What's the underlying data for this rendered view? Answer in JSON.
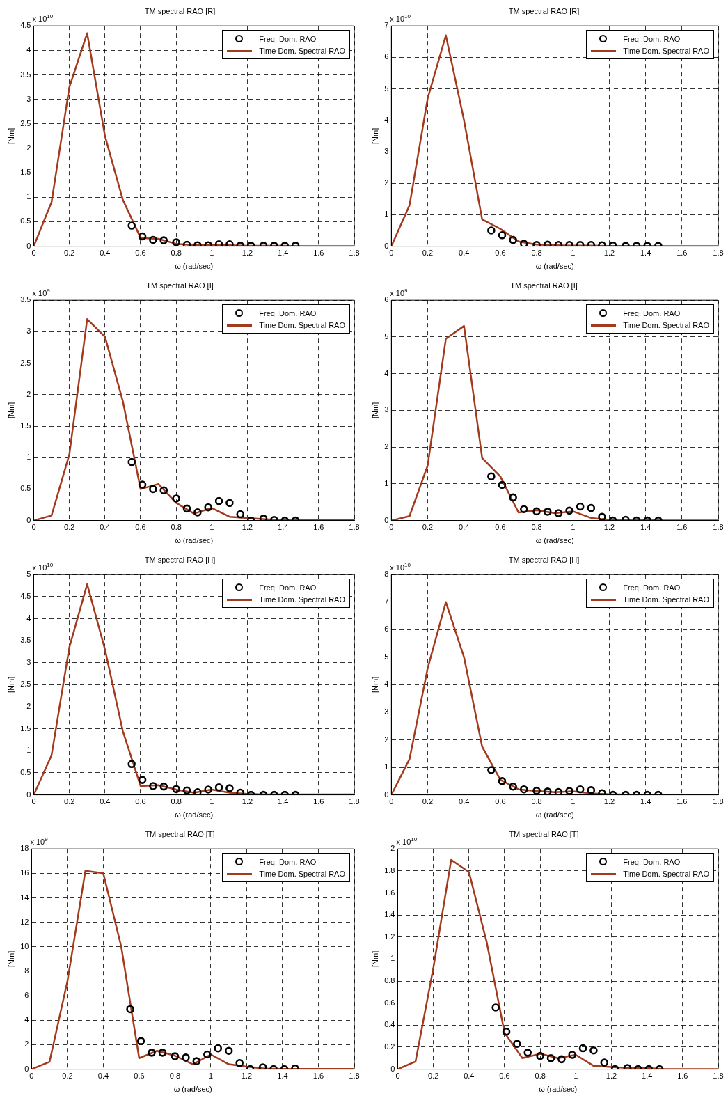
{
  "chart_data": [
    {
      "type": "line",
      "title": "TM spectral RAO [R]",
      "xlabel": "ω (rad/sec)",
      "ylabel": "[Nm]",
      "annotations": [
        "x 10$^{10}$"
      ],
      "xlim": [
        0,
        1.8
      ],
      "xticks": [
        0,
        0.2,
        0.4,
        0.6,
        0.8,
        1,
        1.2,
        1.4,
        1.6,
        1.8
      ],
      "ylim": [
        0,
        4.5
      ],
      "yticks": [
        0,
        0.5,
        1,
        1.5,
        2,
        2.5,
        3,
        3.5,
        4,
        4.5
      ],
      "grid": true,
      "legend": "top right",
      "series": [
        {
          "name": "Freq. Dom. RAO",
          "type": "scatter",
          "marker": "circle",
          "color": "#000000",
          "x": [
            0.55,
            0.61,
            0.67,
            0.73,
            0.8,
            0.86,
            0.92,
            0.98,
            1.04,
            1.1,
            1.16,
            1.22,
            1.29,
            1.35,
            1.41,
            1.47
          ],
          "values": [
            0.42,
            0.2,
            0.13,
            0.12,
            0.08,
            0.03,
            0.02,
            0.02,
            0.04,
            0.04,
            0.01,
            0.01,
            0.01,
            0.01,
            0.01,
            0.01
          ]
        },
        {
          "name": "Time Dom. Spectral RAO",
          "type": "line",
          "marker": "none",
          "color": "#a33a1d",
          "x": [
            0,
            0.1,
            0.2,
            0.3,
            0.4,
            0.5,
            0.6,
            0.7,
            0.8,
            0.9,
            1,
            1.1,
            1.2,
            1.3,
            1.4,
            1.5,
            1.6,
            1.7,
            1.8
          ],
          "values": [
            0,
            0.9,
            3.25,
            4.35,
            2.25,
            0.95,
            0.17,
            0.15,
            0.05,
            0.02,
            0.02,
            0.02,
            0.01,
            0.01,
            0.01,
            0,
            0,
            0,
            0
          ]
        }
      ]
    },
    {
      "type": "line",
      "title": "TM spectral RAO [R]",
      "xlabel": "ω (rad/sec)",
      "ylabel": "[Nm]",
      "annotations": [
        "x 10$^{10}$"
      ],
      "xlim": [
        0,
        1.8
      ],
      "xticks": [
        0,
        0.2,
        0.4,
        0.6,
        0.8,
        1,
        1.2,
        1.4,
        1.6,
        1.8
      ],
      "ylim": [
        0,
        7
      ],
      "yticks": [
        0,
        1,
        2,
        3,
        4,
        5,
        6,
        7
      ],
      "grid": true,
      "legend": "top right",
      "series": [
        {
          "name": "Freq. Dom. RAO",
          "type": "scatter",
          "marker": "circle",
          "color": "#000000",
          "x": [
            0.55,
            0.61,
            0.67,
            0.73,
            0.8,
            0.86,
            0.92,
            0.98,
            1.04,
            1.1,
            1.16,
            1.22,
            1.29,
            1.35,
            1.41,
            1.47
          ],
          "values": [
            0.5,
            0.35,
            0.2,
            0.08,
            0.04,
            0.05,
            0.04,
            0.04,
            0.04,
            0.04,
            0.03,
            0.02,
            0.01,
            0.01,
            0.01,
            0.01
          ]
        },
        {
          "name": "Time Dom. Spectral RAO",
          "type": "line",
          "marker": "none",
          "color": "#a33a1d",
          "x": [
            0,
            0.1,
            0.2,
            0.3,
            0.4,
            0.5,
            0.6,
            0.7,
            0.8,
            0.9,
            1,
            1.1,
            1.2,
            1.3,
            1.4,
            1.5,
            1.6,
            1.7,
            1.8
          ],
          "values": [
            0,
            1.3,
            4.7,
            6.7,
            4.0,
            0.85,
            0.55,
            0.15,
            0.05,
            0.03,
            0.02,
            0.02,
            0.01,
            0.01,
            0.01,
            0,
            0,
            0,
            0
          ]
        }
      ]
    },
    {
      "type": "line",
      "title": "TM spectral RAO [I]",
      "xlabel": "ω (rad/sec)",
      "ylabel": "[Nm]",
      "annotations": [
        "x 10$^{9}$"
      ],
      "xlim": [
        0,
        1.8
      ],
      "xticks": [
        0,
        0.2,
        0.4,
        0.6,
        0.8,
        1,
        1.2,
        1.4,
        1.6,
        1.8
      ],
      "ylim": [
        0,
        3.5
      ],
      "yticks": [
        0,
        0.5,
        1,
        1.5,
        2,
        2.5,
        3,
        3.5
      ],
      "grid": true,
      "legend": "top right",
      "series": [
        {
          "name": "Freq. Dom. RAO",
          "type": "scatter",
          "marker": "circle",
          "color": "#000000",
          "x": [
            0.55,
            0.61,
            0.67,
            0.73,
            0.8,
            0.86,
            0.92,
            0.98,
            1.04,
            1.1,
            1.16,
            1.22,
            1.29,
            1.35,
            1.41,
            1.47
          ],
          "values": [
            0.93,
            0.57,
            0.5,
            0.48,
            0.35,
            0.19,
            0.13,
            0.21,
            0.31,
            0.28,
            0.1,
            0,
            0.03,
            0.01,
            0,
            0
          ]
        },
        {
          "name": "Time Dom. Spectral RAO",
          "type": "line",
          "marker": "none",
          "color": "#a33a1d",
          "x": [
            0,
            0.1,
            0.2,
            0.3,
            0.4,
            0.5,
            0.6,
            0.7,
            0.8,
            0.9,
            1,
            1.1,
            1.2,
            1.3,
            1.4,
            1.5,
            1.6,
            1.7,
            1.8
          ],
          "values": [
            0,
            0.08,
            1.05,
            3.2,
            2.92,
            1.9,
            0.5,
            0.58,
            0.28,
            0.11,
            0.2,
            0.06,
            0.04,
            0.02,
            0.01,
            0.01,
            0.01,
            0.01,
            0.01
          ]
        }
      ]
    },
    {
      "type": "line",
      "title": "TM spectral RAO [I]",
      "xlabel": "ω (rad/sec)",
      "ylabel": "[Nm]",
      "annotations": [
        "x 10$^{9}$"
      ],
      "xlim": [
        0,
        1.8
      ],
      "xticks": [
        0,
        0.2,
        0.4,
        0.6,
        0.8,
        1,
        1.2,
        1.4,
        1.6,
        1.8
      ],
      "ylim": [
        0,
        6
      ],
      "yticks": [
        0,
        1,
        2,
        3,
        4,
        5,
        6
      ],
      "grid": true,
      "legend": "top right",
      "series": [
        {
          "name": "Freq. Dom. RAO",
          "type": "scatter",
          "marker": "circle",
          "color": "#000000",
          "x": [
            0.55,
            0.61,
            0.67,
            0.73,
            0.8,
            0.86,
            0.92,
            0.98,
            1.04,
            1.1,
            1.16,
            1.22,
            1.29,
            1.35,
            1.41,
            1.47
          ],
          "values": [
            1.2,
            0.97,
            0.63,
            0.31,
            0.25,
            0.24,
            0.2,
            0.27,
            0.38,
            0.34,
            0.1,
            0,
            0.02,
            0,
            0,
            0
          ]
        },
        {
          "name": "Time Dom. Spectral RAO",
          "type": "line",
          "marker": "none",
          "color": "#a33a1d",
          "x": [
            0,
            0.1,
            0.2,
            0.3,
            0.4,
            0.5,
            0.6,
            0.7,
            0.8,
            0.9,
            1,
            1.1,
            1.2,
            1.3,
            1.4,
            1.5,
            1.6,
            1.7,
            1.8
          ],
          "values": [
            0,
            0.12,
            1.5,
            4.95,
            5.3,
            1.7,
            1.2,
            0.22,
            0.28,
            0.2,
            0.25,
            0.07,
            0.02,
            0.01,
            0.01,
            0,
            0,
            0,
            0
          ]
        }
      ]
    },
    {
      "type": "line",
      "title": "TM spectral RAO [H]",
      "xlabel": "ω (rad/sec)",
      "ylabel": "[Nm]",
      "annotations": [
        "x 10$^{10}$"
      ],
      "xlim": [
        0,
        1.8
      ],
      "xticks": [
        0,
        0.2,
        0.4,
        0.6,
        0.8,
        1,
        1.2,
        1.4,
        1.6,
        1.8
      ],
      "ylim": [
        0,
        5
      ],
      "yticks": [
        0,
        0.5,
        1,
        1.5,
        2,
        2.5,
        3,
        3.5,
        4,
        4.5,
        5
      ],
      "grid": true,
      "legend": "top right",
      "series": [
        {
          "name": "Freq. Dom. RAO",
          "type": "scatter",
          "marker": "circle",
          "color": "#000000",
          "x": [
            0.55,
            0.61,
            0.67,
            0.73,
            0.8,
            0.86,
            0.92,
            0.98,
            1.04,
            1.1,
            1.16,
            1.22,
            1.29,
            1.35,
            1.41,
            1.47
          ],
          "values": [
            0.7,
            0.34,
            0.2,
            0.19,
            0.13,
            0.1,
            0.06,
            0.12,
            0.17,
            0.15,
            0.05,
            0,
            0,
            0,
            0,
            0
          ]
        },
        {
          "name": "Time Dom. Spectral RAO",
          "type": "line",
          "marker": "none",
          "color": "#a33a1d",
          "x": [
            0,
            0.1,
            0.2,
            0.3,
            0.4,
            0.5,
            0.6,
            0.7,
            0.8,
            0.9,
            1,
            1.1,
            1.2,
            1.3,
            1.4,
            1.5,
            1.6,
            1.7,
            1.8
          ],
          "values": [
            0,
            0.9,
            3.35,
            4.78,
            3.3,
            1.45,
            0.2,
            0.22,
            0.12,
            0.05,
            0.12,
            0.05,
            0.02,
            0.01,
            0.01,
            0.01,
            0.01,
            0.01,
            0.01
          ]
        }
      ]
    },
    {
      "type": "line",
      "title": "TM spectral RAO [H]",
      "xlabel": "ω (rad/sec)",
      "ylabel": "[Nm]",
      "annotations": [
        "x 10$^{10}$"
      ],
      "xlim": [
        0,
        1.8
      ],
      "xticks": [
        0,
        0.2,
        0.4,
        0.6,
        0.8,
        1,
        1.2,
        1.4,
        1.6,
        1.8
      ],
      "ylim": [
        0,
        8
      ],
      "yticks": [
        0,
        1,
        2,
        3,
        4,
        5,
        6,
        7,
        8
      ],
      "grid": true,
      "legend": "top right",
      "series": [
        {
          "name": "Freq. Dom. RAO",
          "type": "scatter",
          "marker": "circle",
          "color": "#000000",
          "x": [
            0.55,
            0.61,
            0.67,
            0.73,
            0.8,
            0.86,
            0.92,
            0.98,
            1.04,
            1.1,
            1.16,
            1.22,
            1.29,
            1.35,
            1.41,
            1.47
          ],
          "values": [
            0.9,
            0.5,
            0.3,
            0.2,
            0.15,
            0.12,
            0.1,
            0.14,
            0.2,
            0.17,
            0.06,
            0,
            0,
            0,
            0,
            0
          ]
        },
        {
          "name": "Time Dom. Spectral RAO",
          "type": "line",
          "marker": "none",
          "color": "#a33a1d",
          "x": [
            0,
            0.1,
            0.2,
            0.3,
            0.4,
            0.5,
            0.6,
            0.7,
            0.8,
            0.9,
            1,
            1.1,
            1.2,
            1.3,
            1.4,
            1.5,
            1.6,
            1.7,
            1.8
          ],
          "values": [
            0,
            1.3,
            4.6,
            7.0,
            5.0,
            1.75,
            0.55,
            0.2,
            0.14,
            0.1,
            0.13,
            0.05,
            0.02,
            0.01,
            0.01,
            0,
            0,
            0,
            0
          ]
        }
      ]
    },
    {
      "type": "line",
      "title": "TM spectral RAO [T]",
      "xlabel": "ω (rad/sec)",
      "ylabel": "[Nm]",
      "annotations": [
        "x 10$^{9}$"
      ],
      "xlim": [
        0,
        1.8
      ],
      "xticks": [
        0,
        0.2,
        0.4,
        0.6,
        0.8,
        1,
        1.2,
        1.4,
        1.6,
        1.8
      ],
      "ylim": [
        0,
        18
      ],
      "yticks": [
        0,
        2,
        4,
        6,
        8,
        10,
        12,
        14,
        16,
        18
      ],
      "grid": true,
      "legend": "top right",
      "series": [
        {
          "name": "Freq. Dom. RAO",
          "type": "scatter",
          "marker": "circle",
          "color": "#000000",
          "x": [
            0.55,
            0.61,
            0.67,
            0.73,
            0.8,
            0.86,
            0.92,
            0.98,
            1.04,
            1.1,
            1.16,
            1.22,
            1.29,
            1.35,
            1.41,
            1.47
          ],
          "values": [
            4.9,
            2.3,
            1.35,
            1.35,
            1.05,
            0.95,
            0.65,
            1.2,
            1.7,
            1.5,
            0.5,
            0,
            0.15,
            0,
            0,
            0.05
          ]
        },
        {
          "name": "Time Dom. Spectral RAO",
          "type": "line",
          "marker": "none",
          "color": "#a33a1d",
          "x": [
            0,
            0.1,
            0.2,
            0.3,
            0.4,
            0.5,
            0.6,
            0.7,
            0.8,
            0.9,
            1,
            1.1,
            1.2,
            1.3,
            1.4,
            1.5,
            1.6,
            1.7,
            1.8
          ],
          "values": [
            0,
            0.6,
            7.2,
            16.2,
            16.0,
            10.0,
            0.9,
            1.5,
            1.1,
            0.4,
            1.2,
            0.4,
            0.2,
            0.05,
            0.02,
            0.02,
            0.02,
            0.02,
            0.02
          ]
        }
      ]
    },
    {
      "type": "line",
      "title": "TM spectral RAO [T]",
      "xlabel": "ω (rad/sec)",
      "ylabel": "[Nm]",
      "annotations": [
        "x 10$^{10}$"
      ],
      "xlim": [
        0,
        1.8
      ],
      "xticks": [
        0,
        0.2,
        0.4,
        0.6,
        0.8,
        1,
        1.2,
        1.4,
        1.6,
        1.8
      ],
      "ylim": [
        0,
        2
      ],
      "yticks": [
        0,
        0.2,
        0.4,
        0.6,
        0.8,
        1,
        1.2,
        1.4,
        1.6,
        1.8,
        2
      ],
      "grid": true,
      "legend": "top right",
      "series": [
        {
          "name": "Freq. Dom. RAO",
          "type": "scatter",
          "marker": "circle",
          "color": "#000000",
          "x": [
            0.55,
            0.61,
            0.67,
            0.73,
            0.8,
            0.86,
            0.92,
            0.98,
            1.04,
            1.1,
            1.16,
            1.22,
            1.29,
            1.35,
            1.41,
            1.47
          ],
          "values": [
            0.56,
            0.34,
            0.23,
            0.15,
            0.12,
            0.1,
            0.09,
            0.13,
            0.19,
            0.17,
            0.06,
            0,
            0.01,
            0,
            0,
            0
          ]
        },
        {
          "name": "Time Dom. Spectral RAO",
          "type": "line",
          "marker": "none",
          "color": "#a33a1d",
          "x": [
            0,
            0.1,
            0.2,
            0.3,
            0.4,
            0.5,
            0.6,
            0.7,
            0.8,
            0.9,
            1,
            1.1,
            1.2,
            1.3,
            1.4,
            1.5,
            1.6,
            1.7,
            1.8
          ],
          "values": [
            0,
            0.07,
            0.92,
            1.9,
            1.79,
            1.15,
            0.33,
            0.1,
            0.14,
            0.1,
            0.13,
            0.03,
            0.02,
            0.01,
            0.01,
            0,
            0,
            0,
            0
          ]
        }
      ]
    }
  ]
}
